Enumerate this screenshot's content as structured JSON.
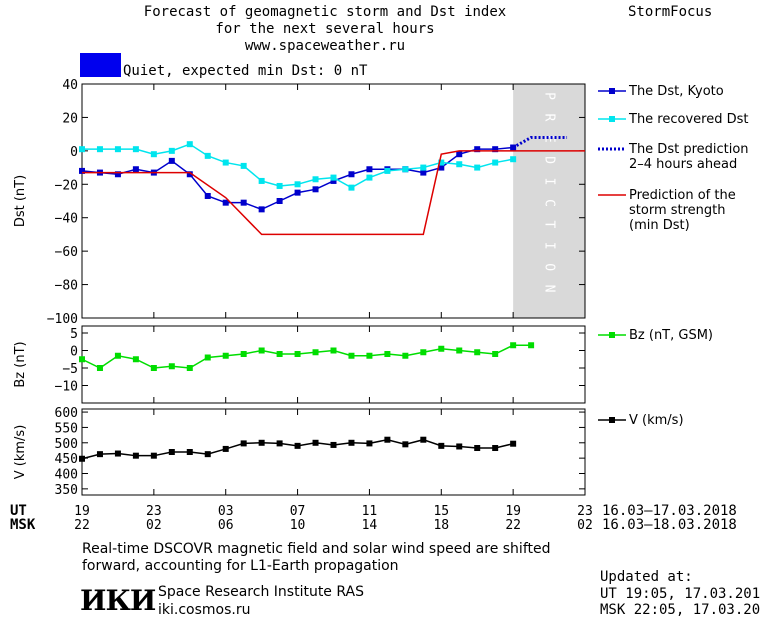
{
  "header": {
    "title_line1": "Forecast of geomagnetic storm and Dst index",
    "title_line2": "for the next several hours",
    "site": "www.spaceweather.ru",
    "brand": "StormFocus"
  },
  "status": {
    "text": "Quiet, expected min Dst: 0 nT",
    "color": "#0000ee"
  },
  "chart_data": [
    {
      "type": "line",
      "ylabel": "Dst (nT)",
      "ylim": [
        -100,
        40
      ],
      "yticks": [
        "40",
        "20",
        "0",
        "−20",
        "−40",
        "−60",
        "−80",
        "−100"
      ],
      "yticks_values": [
        40,
        20,
        0,
        -20,
        -40,
        -60,
        -80,
        -100
      ],
      "x_range_hours": [
        0,
        28
      ],
      "prediction_band": {
        "from_hour": 24,
        "to_hour": 28,
        "label": "PREDICTION"
      },
      "series": [
        {
          "name": "The Dst, Kyoto",
          "color": "#0000cc",
          "x": [
            0,
            1,
            2,
            3,
            4,
            5,
            6,
            7,
            8,
            9,
            10,
            11,
            12,
            13,
            14,
            15,
            16,
            17,
            18,
            19,
            20,
            21,
            22,
            23,
            24
          ],
          "y": [
            -12,
            -13,
            -14,
            -11,
            -13,
            -6,
            -14,
            -27,
            -31,
            -31,
            -35,
            -30,
            -25,
            -23,
            -18,
            -14,
            -11,
            -11,
            -11,
            -13,
            -10,
            -2,
            1,
            1,
            2
          ]
        },
        {
          "name": "The recovered Dst",
          "color": "#00e5ee",
          "x": [
            0,
            1,
            2,
            3,
            4,
            5,
            6,
            7,
            8,
            9,
            10,
            11,
            12,
            13,
            14,
            15,
            16,
            17,
            18,
            19,
            20,
            21,
            22,
            23,
            24
          ],
          "y": [
            1,
            1,
            1,
            1,
            -2,
            0,
            4,
            -3,
            -7,
            -9,
            -18,
            -21,
            -20,
            -17,
            -16,
            -22,
            -16,
            -12,
            -11,
            -10,
            -7,
            -8,
            -10,
            -7,
            -5
          ]
        },
        {
          "name": "The Dst prediction",
          "name_line2": "2–4 hours ahead",
          "color": "#0000cc",
          "dashed": true,
          "x": [
            24,
            24.5,
            25,
            26,
            27
          ],
          "y": [
            2,
            5,
            8,
            8,
            8
          ]
        },
        {
          "name": "Prediction of the",
          "name_line2": "storm strength",
          "name_line3": "(min Dst)",
          "color": "#dd0000",
          "x": [
            0,
            6,
            8,
            10,
            19,
            20,
            21,
            28
          ],
          "y": [
            -13,
            -13,
            -28,
            -50,
            -50,
            -2,
            0,
            0
          ]
        }
      ]
    },
    {
      "type": "line",
      "ylabel": "Bz (nT)",
      "ylim": [
        -15,
        7
      ],
      "yticks": [
        "5",
        "0",
        "−5",
        "−10"
      ],
      "yticks_values": [
        5,
        0,
        -5,
        -10
      ],
      "series": [
        {
          "name": "Bz (nT, GSM)",
          "color": "#00dd00",
          "x": [
            0,
            1,
            2,
            3,
            4,
            5,
            6,
            7,
            8,
            9,
            10,
            11,
            12,
            13,
            14,
            15,
            16,
            17,
            18,
            19,
            20,
            21,
            22,
            23,
            24,
            25
          ],
          "y": [
            -2.5,
            -5,
            -1.5,
            -2.5,
            -5,
            -4.5,
            -5,
            -2,
            -1.5,
            -1,
            0,
            -1,
            -1,
            -0.5,
            0,
            -1.5,
            -1.5,
            -1,
            -1.5,
            -0.5,
            0.5,
            0,
            -0.5,
            -1,
            1.5,
            1.5
          ]
        }
      ]
    },
    {
      "type": "line",
      "ylabel": "V (km/s)",
      "ylim": [
        330,
        610
      ],
      "yticks": [
        "600",
        "550",
        "500",
        "450",
        "400",
        "350"
      ],
      "yticks_values": [
        600,
        550,
        500,
        450,
        400,
        350
      ],
      "series": [
        {
          "name": "V (km/s)",
          "color": "#000000",
          "x": [
            0,
            1,
            2,
            3,
            4,
            5,
            6,
            7,
            8,
            9,
            10,
            11,
            12,
            13,
            14,
            15,
            16,
            17,
            18,
            19,
            20,
            21,
            22,
            23,
            24
          ],
          "y": [
            448,
            463,
            465,
            458,
            458,
            470,
            470,
            463,
            480,
            498,
            500,
            498,
            490,
            500,
            493,
            500,
            498,
            510,
            495,
            510,
            490,
            488,
            483,
            483,
            497
          ]
        }
      ]
    }
  ],
  "x_axis": {
    "ut_label": "UT",
    "msk_label": "MSK",
    "ut_ticks": [
      "19",
      "23",
      "03",
      "07",
      "11",
      "15",
      "19",
      "23"
    ],
    "msk_ticks": [
      "22",
      "02",
      "06",
      "10",
      "14",
      "18",
      "22",
      "02"
    ],
    "tick_hours": [
      0,
      4,
      8,
      12,
      16,
      20,
      24,
      28
    ],
    "ut_range": "16.03–17.03.2018",
    "msk_range": "16.03–18.03.2018"
  },
  "footer": {
    "note_line1": "Real-time DSCOVR magnetic field and solar wind speed are shifted",
    "note_line2": "forward, accounting for L1-Earth propagation",
    "logo_text": "ИКИ",
    "institute": "Space Research Institute RAS",
    "institute_url": "iki.cosmos.ru",
    "updated_label": "Updated at:",
    "updated_ut": "UT  19:05, 17.03.2018",
    "updated_msk": "MSK 22:05, 17.03.2018"
  }
}
